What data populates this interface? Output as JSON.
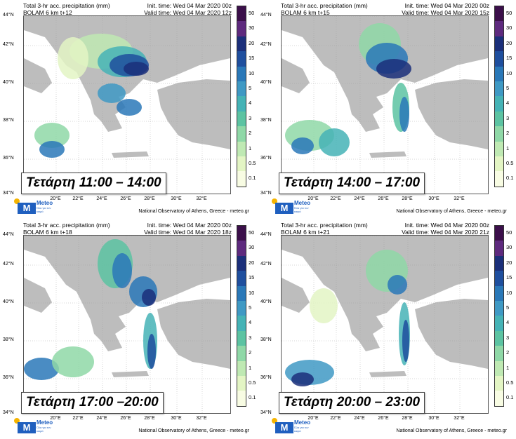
{
  "colorbar": [
    {
      "label": "50",
      "color": "#3b0f4a"
    },
    {
      "label": "30",
      "color": "#5e2a7e"
    },
    {
      "label": "20",
      "color": "#1b2f7a"
    },
    {
      "label": "15",
      "color": "#1f4f9e"
    },
    {
      "label": "10",
      "color": "#2a78b8"
    },
    {
      "label": "5",
      "color": "#3f99c4"
    },
    {
      "label": "4",
      "color": "#45b3b6"
    },
    {
      "label": "3",
      "color": "#5cc3a2"
    },
    {
      "label": "2",
      "color": "#8fd8a7"
    },
    {
      "label": "1",
      "color": "#bfe9b3"
    },
    {
      "label": "0.5",
      "color": "#e3f5c4"
    },
    {
      "label": "0.1",
      "color": "#f8fce3"
    }
  ],
  "lat_labels": [
    "44°N",
    "42°N",
    "40°N",
    "38°N",
    "36°N",
    "34°N"
  ],
  "lon_labels": [
    "20°E",
    "22°E",
    "24°E",
    "26°E",
    "28°E",
    "30°E",
    "32°E"
  ],
  "logo": {
    "name": "Meteo",
    "tagline": "Όλα για τον καιρό"
  },
  "credit": "National Observatory of Athens, Greece - meteo.gr",
  "land_color": "#bdbdbd",
  "panels": [
    {
      "title_line1": "Total 3-hr acc. precipitation (mm)",
      "title_line2": "BOLAM 6 km t+12",
      "init_time": "Init. time: Wed 04 Mar 2020 00z",
      "valid_time": "Valid time: Wed 04 Mar 2020 12z",
      "overlay": "Τετάρτη 11:00 – 14:00"
    },
    {
      "title_line1": "Total 3-hr acc. precipitation (mm)",
      "title_line2": "BOLAM 6 km t+15",
      "init_time": "Init. time: Wed 04 Mar 2020 00z",
      "valid_time": "Valid time: Wed 04 Mar 2020 15z",
      "overlay": "Τετάρτη 14:00 – 17:00"
    },
    {
      "title_line1": "Total 3-hr acc. precipitation (mm)",
      "title_line2": "BOLAM 6 km t+18",
      "init_time": "Init. time: Wed 04 Mar 2020 00z",
      "valid_time": "Valid time: Wed 04 Mar 2020 18z",
      "overlay": "Τετάρτη 17:00 –20:00"
    },
    {
      "title_line1": "Total 3-hr acc. precipitation (mm)",
      "title_line2": "BOLAM 6 km t+21",
      "init_time": "Init. time: Wed 04 Mar 2020 00z",
      "valid_time": "Valid time: Wed 04 Mar 2020 21z",
      "overlay": "Τετάρτη 20:00 – 23:00"
    }
  ]
}
